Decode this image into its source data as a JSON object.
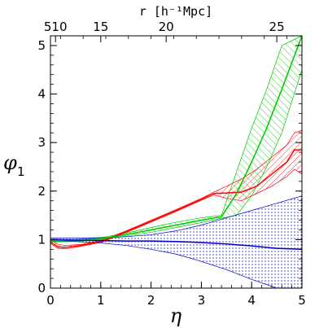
{
  "chart_data": {
    "type": "line",
    "xlabel": "η",
    "ylabel": "φ",
    "ylabel_sub": "1",
    "top_axis_label": "r [h⁻¹Mpc]",
    "xlim": [
      0,
      5
    ],
    "ylim": [
      0,
      5.2
    ],
    "x_ticks": [
      "0",
      "1",
      "2",
      "3",
      "4",
      "5"
    ],
    "y_ticks": [
      "0",
      "1",
      "2",
      "3",
      "4",
      "5"
    ],
    "top_ticks": [
      {
        "label": "510",
        "eta": 0.1
      },
      {
        "label": "15",
        "eta": 1.0
      },
      {
        "label": "20",
        "eta": 2.3
      },
      {
        "label": "25",
        "eta": 4.5
      }
    ],
    "grid": false,
    "series": [
      {
        "color": "#ff0000",
        "x": [
          0,
          0.15,
          0.3,
          0.6,
          1.0,
          1.5,
          2.0,
          2.5,
          3.0,
          3.25,
          3.5,
          3.8,
          4.1,
          4.4,
          4.7,
          4.85,
          5.0
        ],
        "values": [
          0.95,
          0.85,
          0.84,
          0.88,
          0.96,
          1.16,
          1.38,
          1.6,
          1.83,
          1.95,
          1.96,
          1.98,
          2.1,
          2.35,
          2.6,
          2.85,
          2.85
        ],
        "band_upper": [
          1.0,
          0.9,
          0.88,
          0.9,
          0.98,
          1.18,
          1.4,
          1.62,
          1.85,
          1.98,
          2.1,
          2.25,
          2.45,
          2.7,
          2.95,
          3.2,
          3.25
        ],
        "band_lower": [
          0.92,
          0.82,
          0.81,
          0.86,
          0.94,
          1.14,
          1.36,
          1.58,
          1.81,
          1.92,
          1.85,
          1.8,
          1.95,
          2.1,
          2.3,
          2.45,
          2.35
        ]
      },
      {
        "color": "#00c800",
        "x": [
          0,
          0.5,
          1.0,
          1.5,
          2.0,
          2.5,
          3.0,
          3.4,
          3.7,
          4.0,
          4.3,
          4.6,
          5.0
        ],
        "values": [
          0.97,
          0.98,
          1.02,
          1.1,
          1.2,
          1.3,
          1.4,
          1.47,
          1.95,
          2.6,
          3.3,
          4.1,
          5.2
        ],
        "band_upper": [
          0.99,
          1.0,
          1.04,
          1.13,
          1.25,
          1.36,
          1.45,
          1.5,
          2.4,
          3.3,
          4.1,
          5.0,
          5.2
        ],
        "band_lower": [
          0.95,
          0.96,
          1.0,
          1.07,
          1.15,
          1.25,
          1.35,
          1.44,
          1.5,
          1.9,
          2.5,
          3.2,
          4.5
        ]
      },
      {
        "color": "#0000cc",
        "x": [
          0,
          0.5,
          1.0,
          1.5,
          2.0,
          2.5,
          3.0,
          3.5,
          4.0,
          4.5,
          5.0
        ],
        "values": [
          1.0,
          0.99,
          0.98,
          0.97,
          0.97,
          0.96,
          0.94,
          0.91,
          0.87,
          0.82,
          0.8
        ],
        "band_upper": [
          1.03,
          1.03,
          1.04,
          1.06,
          1.1,
          1.18,
          1.3,
          1.45,
          1.6,
          1.75,
          1.9
        ],
        "band_lower": [
          0.97,
          0.96,
          0.93,
          0.88,
          0.8,
          0.7,
          0.55,
          0.38,
          0.18,
          0.0,
          0.0
        ]
      }
    ]
  }
}
